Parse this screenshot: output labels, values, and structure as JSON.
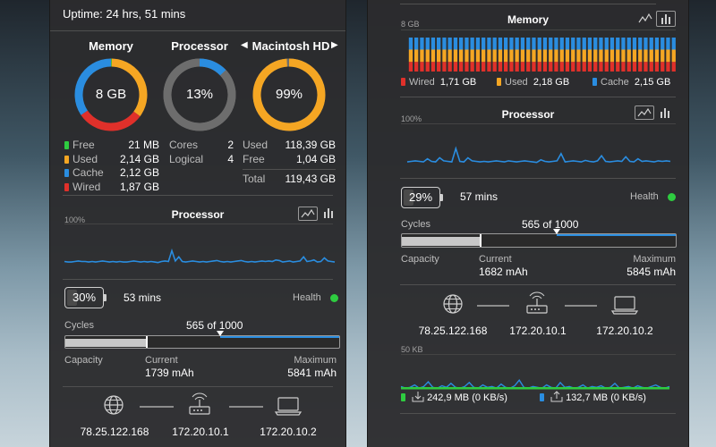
{
  "colors": {
    "free": "#2ecc40",
    "used": "#f5a623",
    "cache": "#2a8de0",
    "wired": "#e0302a",
    "processor": "#2a8de0",
    "upload": "#2a8de0",
    "download": "#2ecc40"
  },
  "left": {
    "uptime": "Uptime: 24 hrs, 51 mins",
    "memory": {
      "title": "Memory",
      "center": "8 GB",
      "rows": [
        {
          "label": "Free",
          "value": "21 MB"
        },
        {
          "label": "Used",
          "value": "2,14 GB"
        },
        {
          "label": "Cache",
          "value": "2,12 GB"
        },
        {
          "label": "Wired",
          "value": "1,87 GB"
        }
      ],
      "ring": [
        {
          "key": "free",
          "value": 21
        },
        {
          "key": "used",
          "value": 2140
        },
        {
          "key": "wired",
          "value": 1870
        },
        {
          "key": "cache",
          "value": 2120
        }
      ]
    },
    "processor_ring": {
      "title": "Processor",
      "center": "13%",
      "percent": 13,
      "rows": [
        {
          "label": "Cores",
          "value": "2"
        },
        {
          "label": "Logical",
          "value": "4"
        }
      ]
    },
    "disk": {
      "prev_icon": "triangle-left-icon",
      "next_icon": "triangle-right-icon",
      "title": "Macintosh HD",
      "center": "99%",
      "percent": 99,
      "rows": [
        {
          "label": "Used",
          "value": "118,39 GB"
        },
        {
          "label": "Free",
          "value": "1,04 GB"
        },
        {
          "label": "Total",
          "value": "119,43 GB"
        }
      ]
    },
    "processor_graph": {
      "title": "Processor",
      "max": "100%",
      "values": [
        13,
        12,
        12,
        13,
        14,
        13,
        13,
        12,
        13,
        12,
        13,
        14,
        13,
        12,
        13,
        12,
        13,
        12,
        12,
        13,
        14,
        13,
        12,
        13,
        12,
        13,
        12,
        11,
        13,
        14,
        13,
        34,
        14,
        22,
        13,
        12,
        13,
        14,
        13,
        12,
        13,
        12,
        13,
        14,
        15,
        13,
        12,
        13,
        12,
        13,
        14,
        15,
        13,
        12,
        13,
        12,
        13,
        14,
        13,
        14,
        13,
        16,
        15,
        12,
        13,
        14,
        12,
        13,
        14,
        22,
        13,
        14,
        16,
        12,
        13,
        20,
        14,
        13,
        12
      ]
    },
    "battery": {
      "percent_label": "30%",
      "level": 30,
      "time": "53 mins",
      "health_label": "Health",
      "cycles_label": "Cycles",
      "cycles_text": "565 of 1000",
      "cycles": 565,
      "cycles_max": 1000,
      "capacity_label": "Capacity",
      "current_label": "Current",
      "current_value": "1739 mAh",
      "max_label": "Maximum",
      "max_value": "5841 mAh",
      "current_mah": 1739,
      "max_mah": 5841
    },
    "network": {
      "ips": [
        "78.25.122.168",
        "172.20.10.1",
        "172.20.10.2"
      ]
    }
  },
  "right": {
    "memory": {
      "title": "Memory",
      "max": "8 GB",
      "legend": [
        {
          "label": "Wired",
          "value": "1,71 GB"
        },
        {
          "label": "Used",
          "value": "2,18 GB"
        },
        {
          "label": "Cache",
          "value": "2,15 GB"
        }
      ],
      "wired": 1.71,
      "used": 2.18,
      "cache": 2.15,
      "bars": 48
    },
    "processor": {
      "title": "Processor",
      "max": "100%",
      "values": [
        12,
        13,
        14,
        13,
        12,
        18,
        13,
        12,
        20,
        14,
        13,
        12,
        38,
        13,
        12,
        20,
        14,
        13,
        12,
        13,
        12,
        13,
        14,
        13,
        12,
        14,
        13,
        12,
        13,
        14,
        13,
        12,
        11,
        16,
        13,
        12,
        13,
        14,
        28,
        12,
        13,
        14,
        13,
        12,
        15,
        13,
        12,
        14,
        24,
        13,
        12,
        13,
        14,
        13,
        22,
        13,
        12,
        18,
        13,
        14,
        13,
        12,
        14,
        13,
        14,
        13
      ]
    },
    "battery": {
      "percent_label": "29%",
      "level": 29,
      "time": "57 mins",
      "health_label": "Health",
      "cycles_label": "Cycles",
      "cycles_text": "565 of 1000",
      "cycles": 565,
      "cycles_max": 1000,
      "capacity_label": "Capacity",
      "current_label": "Current",
      "current_value": "1682 mAh",
      "max_label": "Maximum",
      "max_value": "5845 mAh",
      "current_mah": 1682,
      "max_mah": 5845
    },
    "network": {
      "ips": [
        "78.25.122.168",
        "172.20.10.1",
        "172.20.10.2"
      ],
      "graph_max": "50 KB",
      "download": "242,9 MB (0 KB/s)",
      "upload": "132,7 MB (0 KB/s)",
      "dl_values": [
        2,
        2,
        2,
        2,
        2,
        2,
        2,
        2,
        2,
        2,
        2,
        2,
        2,
        2,
        2,
        2,
        2,
        2,
        2,
        2,
        2,
        2,
        2,
        2,
        2,
        2,
        2,
        2,
        2,
        2,
        2,
        2,
        2,
        2,
        2,
        2,
        2,
        2,
        2,
        2,
        2,
        2,
        2,
        2,
        2,
        2,
        2,
        2,
        2,
        2,
        2,
        2,
        2,
        2,
        2,
        2,
        2,
        2,
        2,
        2
      ],
      "ul_values": [
        4,
        2,
        3,
        6,
        2,
        4,
        10,
        3,
        2,
        5,
        3,
        8,
        3,
        2,
        4,
        9,
        3,
        2,
        6,
        3,
        4,
        2,
        7,
        3,
        2,
        5,
        12,
        3,
        2,
        4,
        3,
        2,
        6,
        3,
        2,
        9,
        3,
        4,
        2,
        3,
        6,
        2,
        4,
        3,
        5,
        2,
        3,
        8,
        2,
        3,
        4,
        2,
        5,
        3,
        2,
        4,
        6,
        3,
        2,
        4
      ]
    }
  }
}
